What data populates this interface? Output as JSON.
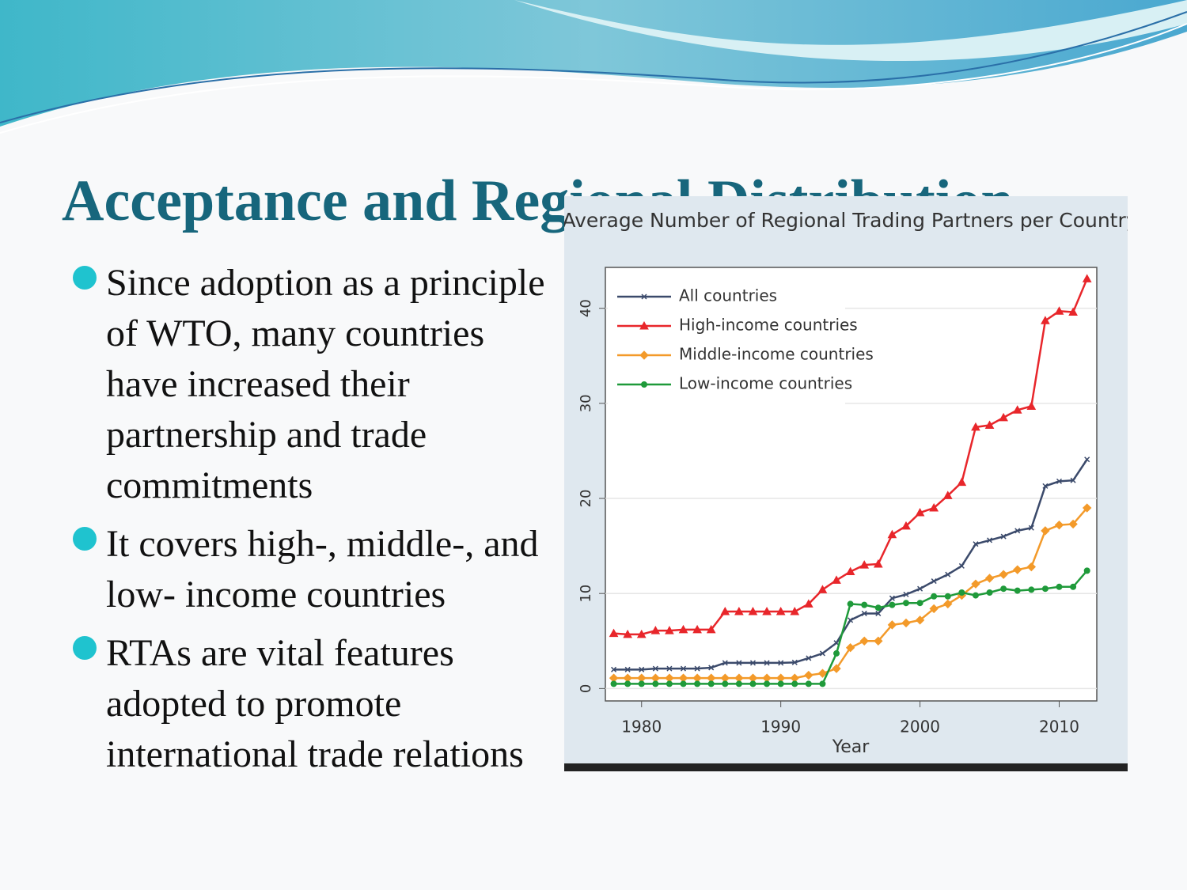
{
  "slide": {
    "title": "Acceptance and Regional Distribution",
    "bullets": [
      "Since adoption as a principle of WTO, many countries have increased their partnership and trade commitments",
      "It covers high-, middle-, and low- income countries",
      "RTAs are vital features adopted to promote international trade relations"
    ]
  },
  "chart_data": {
    "type": "line",
    "title": "Average Number of Regional Trading Partners per Country",
    "x_label": "Year",
    "x": [
      1978,
      1979,
      1980,
      1981,
      1982,
      1983,
      1984,
      1985,
      1986,
      1987,
      1988,
      1989,
      1990,
      1991,
      1992,
      1993,
      1994,
      1995,
      1996,
      1997,
      1998,
      1999,
      2000,
      2001,
      2002,
      2003,
      2004,
      2005,
      2006,
      2007,
      2008,
      2009,
      2010,
      2011,
      2012
    ],
    "series": [
      {
        "name": "All countries",
        "color": "#3b4a6b",
        "marker": "x",
        "values": [
          2.0,
          2.0,
          2.0,
          2.1,
          2.1,
          2.1,
          2.1,
          2.2,
          2.7,
          2.7,
          2.7,
          2.7,
          2.7,
          2.75,
          3.2,
          3.7,
          4.8,
          7.2,
          7.9,
          7.9,
          9.5,
          9.9,
          10.5,
          11.3,
          12.0,
          12.9,
          15.2,
          15.6,
          16.0,
          16.6,
          16.9,
          21.3,
          21.8,
          21.9,
          24.1
        ]
      },
      {
        "name": "High-income countries",
        "color": "#e8262b",
        "marker": "triangle",
        "values": [
          5.8,
          5.7,
          5.7,
          6.1,
          6.1,
          6.2,
          6.2,
          6.2,
          8.1,
          8.1,
          8.1,
          8.1,
          8.1,
          8.1,
          8.9,
          10.4,
          11.4,
          12.3,
          13.0,
          13.1,
          16.2,
          17.1,
          18.5,
          19.0,
          20.3,
          21.7,
          27.5,
          27.7,
          28.5,
          29.3,
          29.7,
          38.7,
          39.7,
          39.6,
          43.1
        ]
      },
      {
        "name": "Middle-income countries",
        "color": "#f39a2a",
        "marker": "diamond",
        "values": [
          1.1,
          1.1,
          1.1,
          1.1,
          1.1,
          1.1,
          1.1,
          1.1,
          1.1,
          1.1,
          1.1,
          1.1,
          1.1,
          1.1,
          1.4,
          1.6,
          2.1,
          4.3,
          5.0,
          5.0,
          6.7,
          6.9,
          7.2,
          8.4,
          8.9,
          9.8,
          11.0,
          11.6,
          12.0,
          12.5,
          12.8,
          16.6,
          17.2,
          17.3,
          19.0
        ]
      },
      {
        "name": "Low-income countries",
        "color": "#1f9a3a",
        "marker": "circle",
        "values": [
          0.5,
          0.5,
          0.5,
          0.5,
          0.5,
          0.5,
          0.5,
          0.5,
          0.5,
          0.5,
          0.5,
          0.5,
          0.5,
          0.5,
          0.5,
          0.5,
          3.7,
          8.9,
          8.8,
          8.5,
          8.8,
          9.0,
          9.0,
          9.7,
          9.7,
          10.1,
          9.8,
          10.1,
          10.5,
          10.3,
          10.4,
          10.5,
          10.7,
          10.7,
          12.4
        ]
      }
    ],
    "xlim": [
      1977.4,
      2012.7
    ],
    "ylim": [
      -1.3,
      44.3
    ],
    "xticks": [
      1980,
      1990,
      2000,
      2010
    ],
    "yticks": [
      0,
      10,
      20,
      30,
      40
    ],
    "grid": true,
    "legend": "top-left"
  }
}
